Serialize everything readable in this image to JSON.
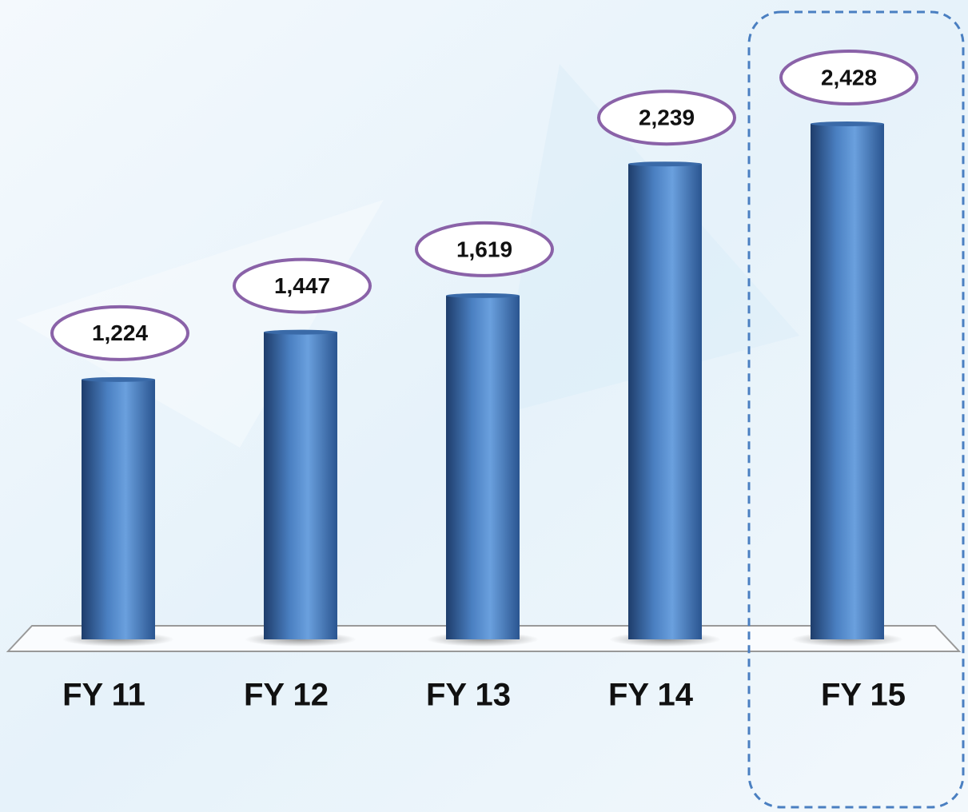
{
  "chart_data": {
    "type": "bar",
    "categories": [
      "FY 11",
      "FY 12",
      "FY 13",
      "FY 14",
      "FY 15"
    ],
    "values": [
      1224,
      1447,
      1619,
      2239,
      2428
    ],
    "value_labels": [
      "1,224",
      "1,447",
      "1,619",
      "2,239",
      "2,428"
    ],
    "color": "#4a7fc1"
  }
}
